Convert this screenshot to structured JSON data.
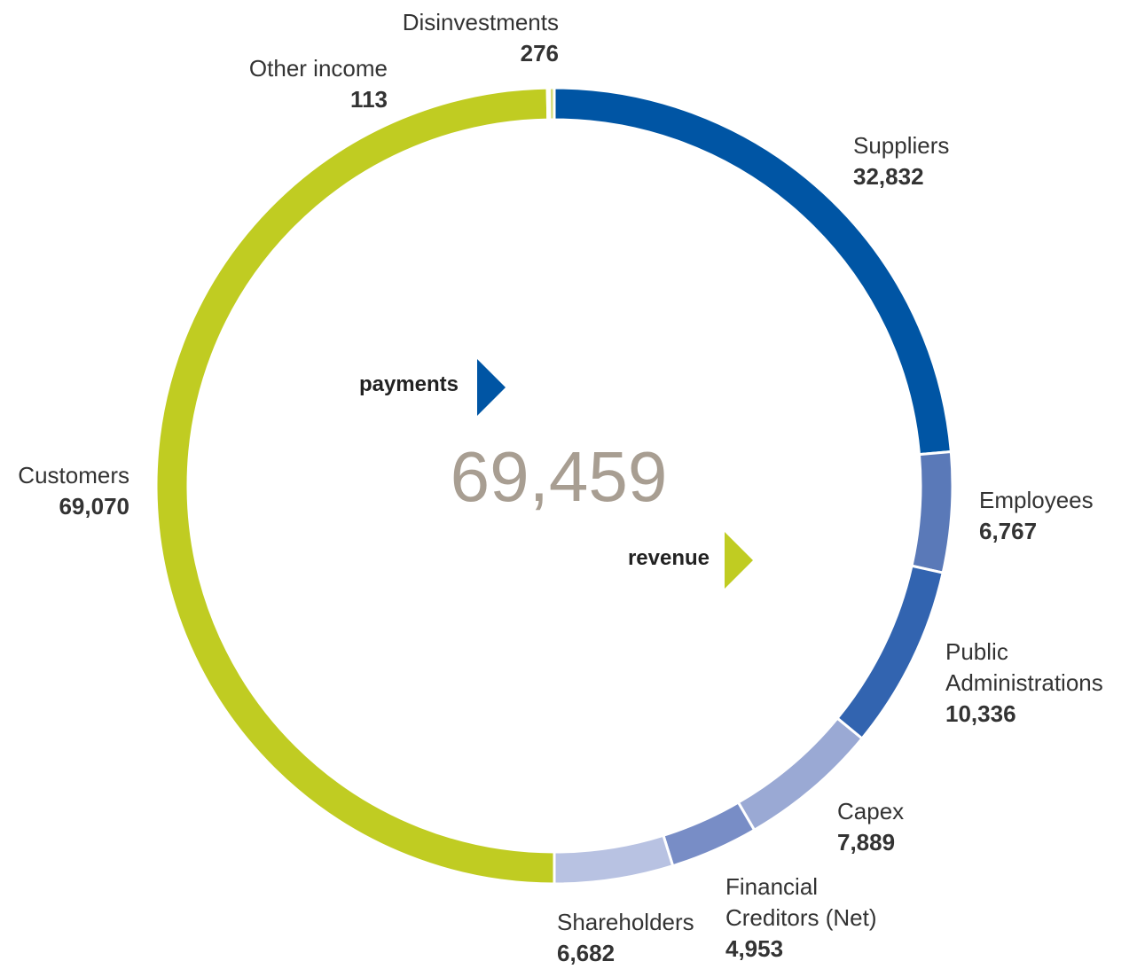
{
  "chart_data": {
    "type": "donut",
    "center": {
      "value": 69459,
      "label": "69,459"
    },
    "groups": [
      {
        "name": "payments",
        "color": "#0055a4",
        "categories": [
          "Suppliers",
          "Employees",
          "Public Administrations",
          "Capex",
          "Financial Creditors (Net)",
          "Shareholders"
        ],
        "values": [
          32832,
          6767,
          10336,
          7889,
          4953,
          6682
        ],
        "value_labels": [
          "32,832",
          "6,767",
          "10,336",
          "7,889",
          "4,953",
          "6,682"
        ],
        "colors": [
          "#0055a4",
          "#5a79b8",
          "#3264b0",
          "#9aa9d4",
          "#788dc6",
          "#b8c2e2"
        ]
      },
      {
        "name": "revenue",
        "color": "#c0cc22",
        "categories": [
          "Customers",
          "Other income",
          "Disinvestments"
        ],
        "values": [
          69070,
          113,
          276
        ],
        "value_labels": [
          "69,070",
          "113",
          "276"
        ],
        "colors": [
          "#c0cc22",
          "#e6ebb0",
          "#d3db78"
        ]
      }
    ]
  }
}
